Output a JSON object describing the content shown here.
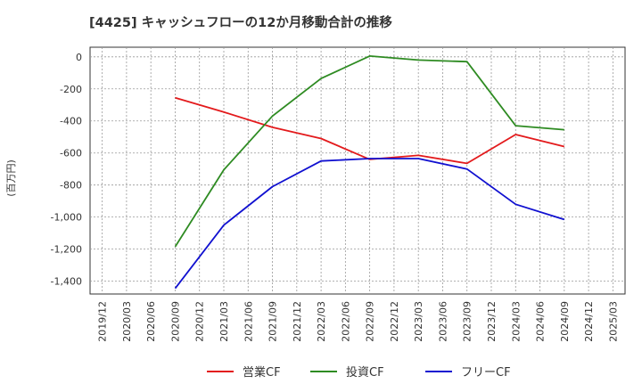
{
  "chart_data": {
    "type": "line",
    "title": "[4425]  キャッシュフローの12か月移動合計の推移",
    "ylabel": "(百万円)",
    "xlabel": "",
    "ylim": [
      -1480,
      60
    ],
    "yticks": [
      0,
      -200,
      -400,
      -600,
      -800,
      -1000,
      -1200,
      -1400
    ],
    "ytick_labels": [
      "0",
      "-200",
      "-400",
      "-600",
      "-800",
      "-1,000",
      "-1,200",
      "-1,400"
    ],
    "categories": [
      "2019/12",
      "2020/03",
      "2020/06",
      "2020/09",
      "2020/12",
      "2021/03",
      "2021/06",
      "2021/09",
      "2021/12",
      "2022/03",
      "2022/06",
      "2022/09",
      "2022/12",
      "2023/03",
      "2023/06",
      "2023/09",
      "2023/12",
      "2024/03",
      "2024/06",
      "2024/09",
      "2024/12",
      "2025/03"
    ],
    "grid": true,
    "legend_position": "bottom",
    "series": [
      {
        "name": "営業CF",
        "color": "#e31a1c",
        "values": [
          null,
          null,
          null,
          -255,
          null,
          -345,
          null,
          -440,
          null,
          -510,
          null,
          -640,
          null,
          -615,
          null,
          -665,
          null,
          -485,
          null,
          -560,
          null,
          null
        ]
      },
      {
        "name": "投資CF",
        "color": "#2e8b22",
        "values": [
          null,
          null,
          null,
          -1185,
          null,
          -705,
          null,
          -370,
          null,
          -135,
          null,
          5,
          null,
          -20,
          null,
          -30,
          null,
          -430,
          null,
          -455,
          null,
          null
        ]
      },
      {
        "name": "フリーCF",
        "color": "#1010d0",
        "values": [
          null,
          null,
          null,
          -1445,
          null,
          -1050,
          null,
          -810,
          null,
          -650,
          null,
          -635,
          null,
          -635,
          null,
          -700,
          null,
          -920,
          null,
          -1015,
          null,
          null
        ]
      }
    ]
  }
}
